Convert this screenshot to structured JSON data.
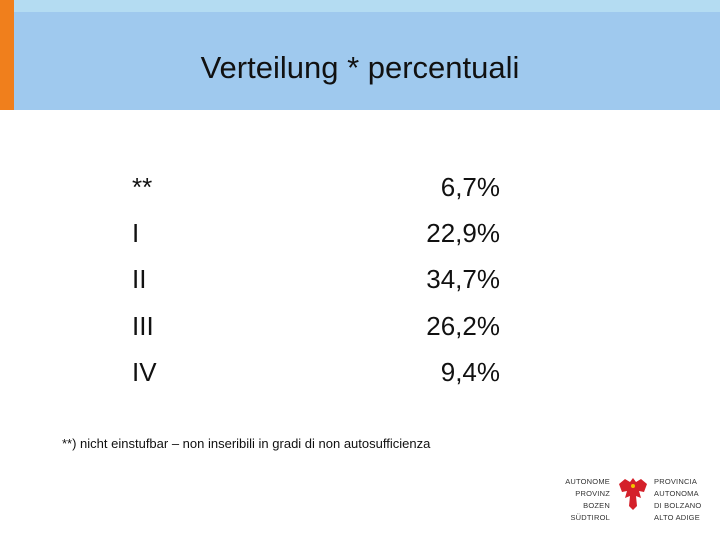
{
  "header": {
    "title": "Verteilung * percentuali"
  },
  "table": {
    "rows": [
      [
        "**",
        "6,7%"
      ],
      [
        "I",
        "22,9%"
      ],
      [
        "II",
        "34,7%"
      ],
      [
        "III",
        "26,2%"
      ],
      [
        "IV",
        "9,4%"
      ]
    ]
  },
  "footnote": "**) nicht einstufbar – non inseribili in gradi di non autosufficienza",
  "logo": {
    "left": [
      "AUTONOME",
      "PROVINZ",
      "BOZEN",
      "SÜDTIROL"
    ],
    "right": [
      "PROVINCIA",
      "AUTONOMA",
      "DI BOLZANO",
      "ALTO ADIGE"
    ]
  }
}
